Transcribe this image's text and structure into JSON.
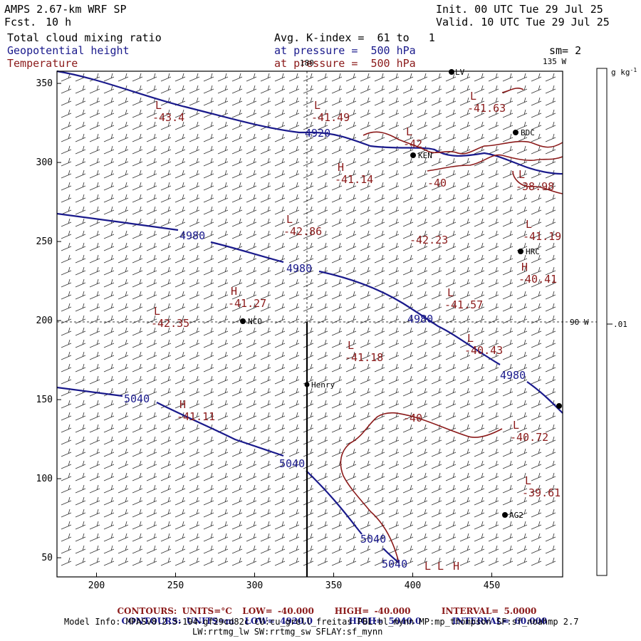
{
  "header": {
    "model": "AMPS 2.67-km WRF SP",
    "forecast_label": "Fcst.",
    "forecast_value": "10 h",
    "init": "Init. 00 UTC Tue 29 Jul 25",
    "valid": "Valid. 10 UTC Tue 29 Jul 25",
    "field1": "Total cloud mixing ratio",
    "field2": "Geopotential height",
    "field3": "Temperature",
    "avg_k_index": "Avg. K-index =  61 to   1",
    "pressure_line_1": "at pressure =  500 hPa",
    "pressure_line_2": "at pressure =  500 hPa",
    "sm": "sm= 2"
  },
  "map": {
    "x_ticks": [
      "200",
      "250",
      "300",
      "350",
      "400",
      "450"
    ],
    "y_ticks": [
      "50",
      "100",
      "150",
      "200",
      "250",
      "300",
      "350"
    ],
    "lon_labels": [
      "180",
      "135 W",
      "90 W"
    ],
    "colorbar_unit": "g kg",
    "colorbar_unit_exp": "-1",
    "colorbar_value": ".01",
    "stations": [
      {
        "name": "KEN"
      },
      {
        "name": "BDC"
      },
      {
        "name": "HRC"
      },
      {
        "name": "NCO"
      },
      {
        "name": "Henry"
      },
      {
        "name": "AG2"
      },
      {
        "name": "LV"
      }
    ],
    "height_labels": [
      "4920",
      "4980",
      "4980",
      "4980",
      "4980",
      "5040",
      "5040",
      "5040",
      "5040"
    ],
    "temp_contour_labels": [
      "-40",
      "-40"
    ],
    "extrema": [
      {
        "type": "L",
        "value": "-43.4"
      },
      {
        "type": "L",
        "value": "-41.49"
      },
      {
        "type": "L",
        "value": "-41.63"
      },
      {
        "type": "L",
        "value": "-42"
      },
      {
        "type": "H",
        "value": "-41.14"
      },
      {
        "type": "L",
        "value": "-38.98"
      },
      {
        "type": "L",
        "value": "-42.86"
      },
      {
        "type": "",
        "value": "-42.23"
      },
      {
        "type": "L",
        "value": "-41.19"
      },
      {
        "type": "H",
        "value": "-40.41"
      },
      {
        "type": "H",
        "value": "-41.27"
      },
      {
        "type": "L",
        "value": "-41.57"
      },
      {
        "type": "L",
        "value": "-42.35"
      },
      {
        "type": "L",
        "value": "-40.43"
      },
      {
        "type": "L",
        "value": "-41.18"
      },
      {
        "type": "H",
        "value": "-41.11"
      },
      {
        "type": "L",
        "value": "-40.72"
      },
      {
        "type": "L",
        "value": "-39.61"
      }
    ],
    "extra_marks": [
      "L",
      "L",
      "H"
    ]
  },
  "footer": {
    "red_line": [
      "CONTOURS:",
      "UNITS=°C",
      "LOW=",
      "-40.000",
      "HIGH=",
      "-40.000",
      "INTERVAL=",
      "5.0000"
    ],
    "blue_line": [
      "CONTOURS:",
      "UNITS=m",
      "LOW=",
      "4920.0",
      "HIGH=",
      "5040.0",
      "INTERVAL=",
      "60.000"
    ],
    "model_info_1": "Model Info: MPASv8.2.3-194-gf29cd82c CU:cu_grell_freitas PBL:bl_mynn MP:mp_thompson SF:sf_noahmp 2.7",
    "model_info_2": "LW:rrtmg_lw SW:rrtmg_sw SFLAY:sf_mynn"
  },
  "colors": {
    "height_contour": "#1a1a8c",
    "temp_contour": "#8b1a1a",
    "frame": "#000000"
  }
}
